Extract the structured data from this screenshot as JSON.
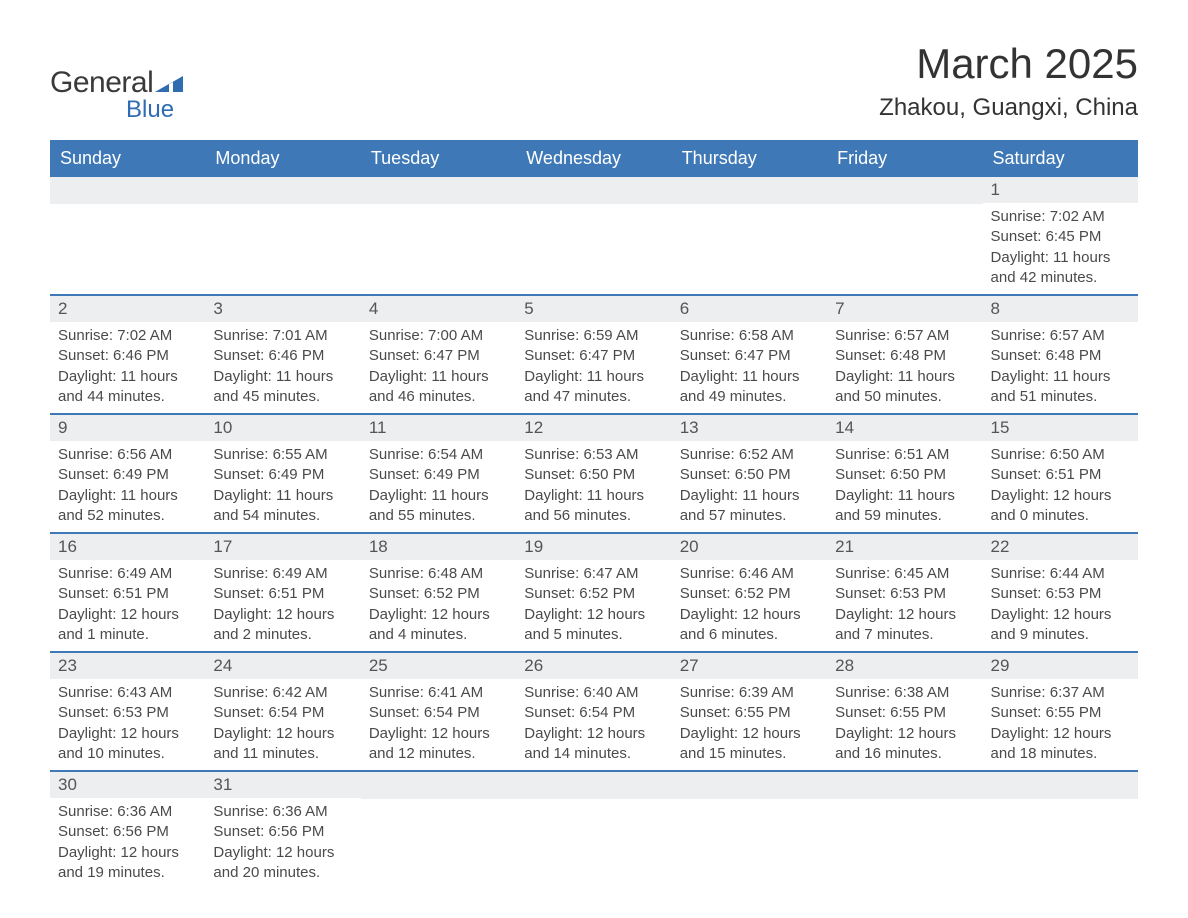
{
  "logo": {
    "text_general": "General",
    "text_blue": "Blue",
    "flag_color": "#2f6db0"
  },
  "header": {
    "month_title": "March 2025",
    "location": "Zhakou, Guangxi, China"
  },
  "styling": {
    "header_bg": "#3e78b7",
    "header_text_color": "#ffffff",
    "row_divider_color": "#3e78b7",
    "daynum_bg": "#eceeef",
    "body_text_color": "#4a4a4a",
    "background_color": "#ffffff",
    "month_title_fontsize": 42,
    "location_fontsize": 24,
    "weekday_fontsize": 18,
    "daynum_fontsize": 17,
    "cell_fontsize": 15
  },
  "weekdays": [
    "Sunday",
    "Monday",
    "Tuesday",
    "Wednesday",
    "Thursday",
    "Friday",
    "Saturday"
  ],
  "weeks": [
    [
      null,
      null,
      null,
      null,
      null,
      null,
      {
        "day": "1",
        "sunrise": "Sunrise: 7:02 AM",
        "sunset": "Sunset: 6:45 PM",
        "daylight": "Daylight: 11 hours and 42 minutes."
      }
    ],
    [
      {
        "day": "2",
        "sunrise": "Sunrise: 7:02 AM",
        "sunset": "Sunset: 6:46 PM",
        "daylight": "Daylight: 11 hours and 44 minutes."
      },
      {
        "day": "3",
        "sunrise": "Sunrise: 7:01 AM",
        "sunset": "Sunset: 6:46 PM",
        "daylight": "Daylight: 11 hours and 45 minutes."
      },
      {
        "day": "4",
        "sunrise": "Sunrise: 7:00 AM",
        "sunset": "Sunset: 6:47 PM",
        "daylight": "Daylight: 11 hours and 46 minutes."
      },
      {
        "day": "5",
        "sunrise": "Sunrise: 6:59 AM",
        "sunset": "Sunset: 6:47 PM",
        "daylight": "Daylight: 11 hours and 47 minutes."
      },
      {
        "day": "6",
        "sunrise": "Sunrise: 6:58 AM",
        "sunset": "Sunset: 6:47 PM",
        "daylight": "Daylight: 11 hours and 49 minutes."
      },
      {
        "day": "7",
        "sunrise": "Sunrise: 6:57 AM",
        "sunset": "Sunset: 6:48 PM",
        "daylight": "Daylight: 11 hours and 50 minutes."
      },
      {
        "day": "8",
        "sunrise": "Sunrise: 6:57 AM",
        "sunset": "Sunset: 6:48 PM",
        "daylight": "Daylight: 11 hours and 51 minutes."
      }
    ],
    [
      {
        "day": "9",
        "sunrise": "Sunrise: 6:56 AM",
        "sunset": "Sunset: 6:49 PM",
        "daylight": "Daylight: 11 hours and 52 minutes."
      },
      {
        "day": "10",
        "sunrise": "Sunrise: 6:55 AM",
        "sunset": "Sunset: 6:49 PM",
        "daylight": "Daylight: 11 hours and 54 minutes."
      },
      {
        "day": "11",
        "sunrise": "Sunrise: 6:54 AM",
        "sunset": "Sunset: 6:49 PM",
        "daylight": "Daylight: 11 hours and 55 minutes."
      },
      {
        "day": "12",
        "sunrise": "Sunrise: 6:53 AM",
        "sunset": "Sunset: 6:50 PM",
        "daylight": "Daylight: 11 hours and 56 minutes."
      },
      {
        "day": "13",
        "sunrise": "Sunrise: 6:52 AM",
        "sunset": "Sunset: 6:50 PM",
        "daylight": "Daylight: 11 hours and 57 minutes."
      },
      {
        "day": "14",
        "sunrise": "Sunrise: 6:51 AM",
        "sunset": "Sunset: 6:50 PM",
        "daylight": "Daylight: 11 hours and 59 minutes."
      },
      {
        "day": "15",
        "sunrise": "Sunrise: 6:50 AM",
        "sunset": "Sunset: 6:51 PM",
        "daylight": "Daylight: 12 hours and 0 minutes."
      }
    ],
    [
      {
        "day": "16",
        "sunrise": "Sunrise: 6:49 AM",
        "sunset": "Sunset: 6:51 PM",
        "daylight": "Daylight: 12 hours and 1 minute."
      },
      {
        "day": "17",
        "sunrise": "Sunrise: 6:49 AM",
        "sunset": "Sunset: 6:51 PM",
        "daylight": "Daylight: 12 hours and 2 minutes."
      },
      {
        "day": "18",
        "sunrise": "Sunrise: 6:48 AM",
        "sunset": "Sunset: 6:52 PM",
        "daylight": "Daylight: 12 hours and 4 minutes."
      },
      {
        "day": "19",
        "sunrise": "Sunrise: 6:47 AM",
        "sunset": "Sunset: 6:52 PM",
        "daylight": "Daylight: 12 hours and 5 minutes."
      },
      {
        "day": "20",
        "sunrise": "Sunrise: 6:46 AM",
        "sunset": "Sunset: 6:52 PM",
        "daylight": "Daylight: 12 hours and 6 minutes."
      },
      {
        "day": "21",
        "sunrise": "Sunrise: 6:45 AM",
        "sunset": "Sunset: 6:53 PM",
        "daylight": "Daylight: 12 hours and 7 minutes."
      },
      {
        "day": "22",
        "sunrise": "Sunrise: 6:44 AM",
        "sunset": "Sunset: 6:53 PM",
        "daylight": "Daylight: 12 hours and 9 minutes."
      }
    ],
    [
      {
        "day": "23",
        "sunrise": "Sunrise: 6:43 AM",
        "sunset": "Sunset: 6:53 PM",
        "daylight": "Daylight: 12 hours and 10 minutes."
      },
      {
        "day": "24",
        "sunrise": "Sunrise: 6:42 AM",
        "sunset": "Sunset: 6:54 PM",
        "daylight": "Daylight: 12 hours and 11 minutes."
      },
      {
        "day": "25",
        "sunrise": "Sunrise: 6:41 AM",
        "sunset": "Sunset: 6:54 PM",
        "daylight": "Daylight: 12 hours and 12 minutes."
      },
      {
        "day": "26",
        "sunrise": "Sunrise: 6:40 AM",
        "sunset": "Sunset: 6:54 PM",
        "daylight": "Daylight: 12 hours and 14 minutes."
      },
      {
        "day": "27",
        "sunrise": "Sunrise: 6:39 AM",
        "sunset": "Sunset: 6:55 PM",
        "daylight": "Daylight: 12 hours and 15 minutes."
      },
      {
        "day": "28",
        "sunrise": "Sunrise: 6:38 AM",
        "sunset": "Sunset: 6:55 PM",
        "daylight": "Daylight: 12 hours and 16 minutes."
      },
      {
        "day": "29",
        "sunrise": "Sunrise: 6:37 AM",
        "sunset": "Sunset: 6:55 PM",
        "daylight": "Daylight: 12 hours and 18 minutes."
      }
    ],
    [
      {
        "day": "30",
        "sunrise": "Sunrise: 6:36 AM",
        "sunset": "Sunset: 6:56 PM",
        "daylight": "Daylight: 12 hours and 19 minutes."
      },
      {
        "day": "31",
        "sunrise": "Sunrise: 6:36 AM",
        "sunset": "Sunset: 6:56 PM",
        "daylight": "Daylight: 12 hours and 20 minutes."
      },
      null,
      null,
      null,
      null,
      null
    ]
  ]
}
